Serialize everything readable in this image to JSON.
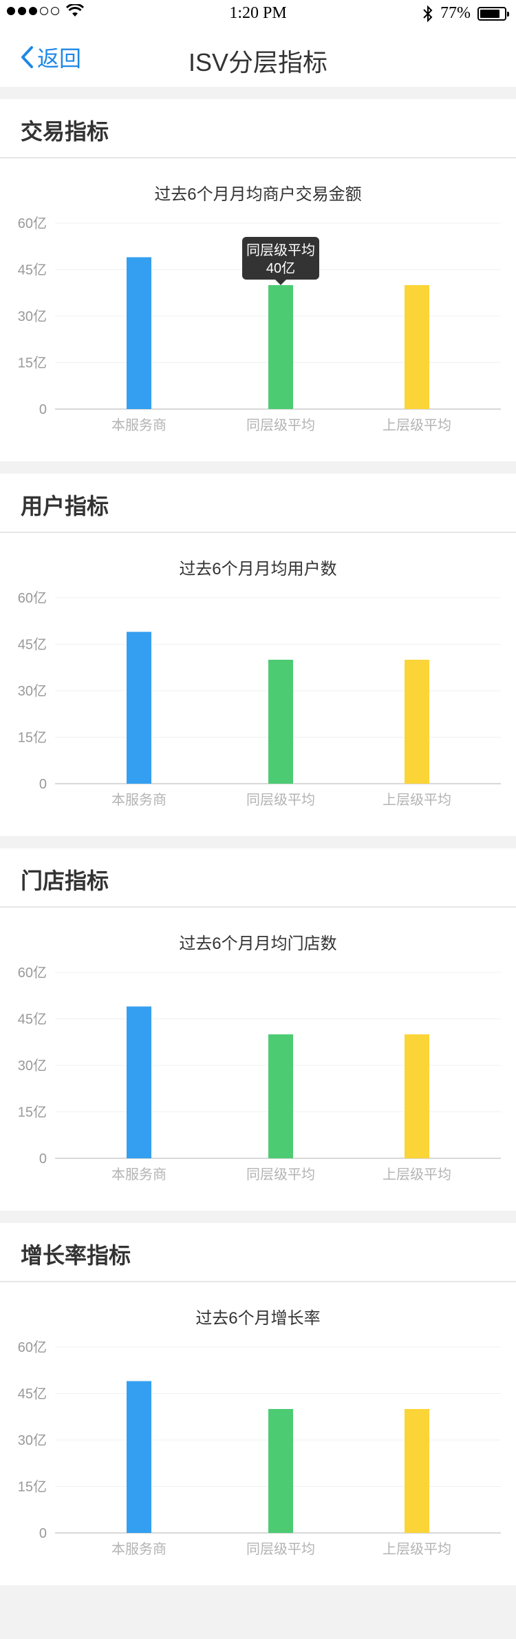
{
  "status_bar": {
    "time": "1:20 PM",
    "battery": "77%"
  },
  "nav": {
    "back_label": "返回",
    "title": "ISV分层指标"
  },
  "colors": {
    "blue": "#349ff0",
    "green": "#4dcb73",
    "yellow": "#fbd437",
    "accent": "#1e88e5"
  },
  "sections": [
    {
      "title": "交易指标",
      "chart_title": "过去6个月月均商户交易金额"
    },
    {
      "title": "用户指标",
      "chart_title": "过去6个月月均用户数"
    },
    {
      "title": "门店指标",
      "chart_title": "过去6个月月均门店数"
    },
    {
      "title": "增长率指标",
      "chart_title": "过去6个月增长率"
    }
  ],
  "tooltip": {
    "line1": "同层级平均",
    "line2": "40亿"
  },
  "chart_data": [
    {
      "type": "bar",
      "title": "过去6个月月均商户交易金额",
      "categories": [
        "本服务商",
        "同层级平均",
        "上层级平均"
      ],
      "values": [
        49,
        40,
        40
      ],
      "colors": [
        "#349ff0",
        "#4dcb73",
        "#fbd437"
      ],
      "ylim": [
        0,
        60
      ],
      "yticks": [
        "0",
        "15亿",
        "30亿",
        "45亿",
        "60亿"
      ]
    },
    {
      "type": "bar",
      "title": "过去6个月月均用户数",
      "categories": [
        "本服务商",
        "同层级平均",
        "上层级平均"
      ],
      "values": [
        49,
        40,
        40
      ],
      "colors": [
        "#349ff0",
        "#4dcb73",
        "#fbd437"
      ],
      "ylim": [
        0,
        60
      ],
      "yticks": [
        "0",
        "15亿",
        "30亿",
        "45亿",
        "60亿"
      ]
    },
    {
      "type": "bar",
      "title": "过去6个月月均门店数",
      "categories": [
        "本服务商",
        "同层级平均",
        "上层级平均"
      ],
      "values": [
        49,
        40,
        40
      ],
      "colors": [
        "#349ff0",
        "#4dcb73",
        "#fbd437"
      ],
      "ylim": [
        0,
        60
      ],
      "yticks": [
        "0",
        "15亿",
        "30亿",
        "45亿",
        "60亿"
      ]
    },
    {
      "type": "bar",
      "title": "过去6个月增长率",
      "categories": [
        "本服务商",
        "同层级平均",
        "上层级平均"
      ],
      "values": [
        49,
        40,
        40
      ],
      "colors": [
        "#349ff0",
        "#4dcb73",
        "#fbd437"
      ],
      "ylim": [
        0,
        60
      ],
      "yticks": [
        "0",
        "15亿",
        "30亿",
        "45亿",
        "60亿"
      ]
    }
  ]
}
